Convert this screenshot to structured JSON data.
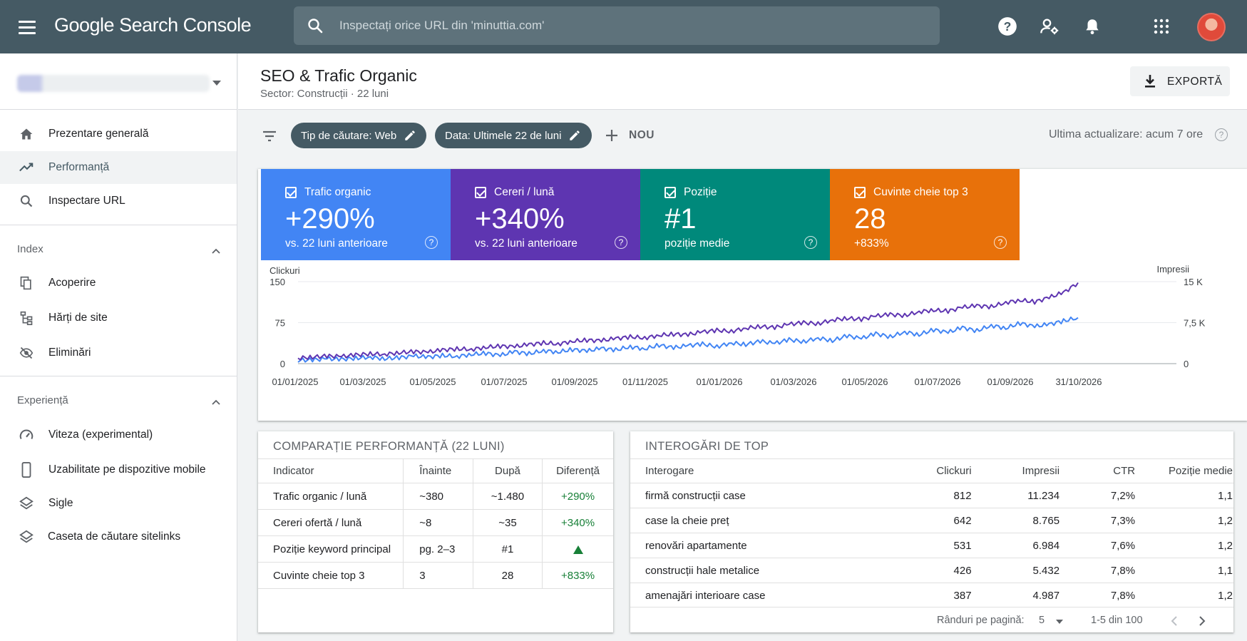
{
  "app": {
    "logo": "Google Search Console",
    "search_placeholder": "Inspectați orice URL din 'minuttia.com'"
  },
  "topbar_icons": [
    "help-icon",
    "manage-users-icon",
    "notifications-icon",
    "apps-icon"
  ],
  "sidebar": {
    "items_top": [
      {
        "label": "Prezentare generală",
        "icon": "home-icon"
      },
      {
        "label": "Performanță",
        "icon": "trending-up-icon",
        "active": true
      },
      {
        "label": "Inspectare URL",
        "icon": "search-icon"
      }
    ],
    "index_title": "Index",
    "items_index": [
      {
        "label": "Acoperire",
        "icon": "coverage-icon"
      },
      {
        "label": "Hărți de site",
        "icon": "sitemap-icon"
      },
      {
        "label": "Eliminări",
        "icon": "removals-icon"
      }
    ],
    "experience_title": "Experiență",
    "items_experience": [
      {
        "label": "Viteza (experimental)",
        "icon": "speed-icon"
      },
      {
        "label": "Uzabilitate pe dispozitive mobile",
        "icon": "phone-icon"
      },
      {
        "label": "Sigle",
        "icon": "layers-icon"
      },
      {
        "label": "Caseta de căutare sitelinks",
        "icon": "layers-icon"
      }
    ]
  },
  "header": {
    "title": "SEO & Trafic Organic",
    "subtitle": "Sector: Construcții · 22 luni",
    "export_label": "EXPORTĂ"
  },
  "filters": {
    "chip_type": "Tip de căutare: Web",
    "chip_date": "Data: Ultimele 22 de luni",
    "new_label": "NOU",
    "last_update": "Ultima actualizare: acum 7 ore"
  },
  "metrics": [
    {
      "label": "Trafic organic",
      "value": "+290%",
      "sub": "vs. 22 luni anterioare",
      "color": "#4285f4"
    },
    {
      "label": "Cereri / lună",
      "value": "+340%",
      "sub": "vs. 22 luni anterioare",
      "color": "#5e35b1"
    },
    {
      "label": "Poziție",
      "value": "#1",
      "sub": "poziție medie",
      "color": "#00897b"
    },
    {
      "label": "Cuvinte cheie top 3",
      "value": "28",
      "sub": "+833%",
      "color": "#e8710a"
    }
  ],
  "chart_data": {
    "type": "line",
    "ylabel_left": "Clickuri",
    "ylabel_right": "Impresii",
    "yticks_left": [
      "150",
      "75",
      "0"
    ],
    "yticks_right": [
      "15 K",
      "7,5 K",
      "0"
    ],
    "ylim_left": [
      0,
      150
    ],
    "ylim_right": [
      0,
      15000
    ],
    "x_ticks": [
      "01/01/2025",
      "01/03/2025",
      "01/05/2025",
      "01/07/2025",
      "01/09/2025",
      "01/11/2025",
      "01/01/2026",
      "01/03/2026",
      "01/05/2026",
      "01/07/2026",
      "01/09/2026",
      "31/10/2026"
    ],
    "grid": true,
    "series": [
      {
        "name": "Clickuri",
        "axis": "left",
        "color": "#4285f4",
        "values": [
          6,
          7,
          9,
          8,
          10,
          12,
          9,
          11,
          14,
          12,
          15,
          13,
          17,
          19,
          15,
          22,
          18,
          24,
          21,
          26,
          23,
          28,
          25,
          31,
          27,
          34,
          29,
          33,
          36,
          31,
          38,
          35,
          41,
          37,
          44,
          40,
          47,
          42,
          51,
          46,
          55,
          49,
          58,
          53,
          62,
          57,
          66,
          60,
          70,
          65,
          74,
          68,
          72,
          78,
          84
        ]
      },
      {
        "name": "Impresii",
        "axis": "right",
        "color": "#5e35b1",
        "values": [
          1000,
          1200,
          1400,
          1300,
          1600,
          1800,
          1700,
          2000,
          2200,
          2100,
          2500,
          2700,
          2600,
          3000,
          3200,
          3100,
          3500,
          3800,
          3600,
          4100,
          4300,
          4200,
          4600,
          4900,
          4700,
          5200,
          5400,
          5300,
          5800,
          6100,
          5900,
          6500,
          6800,
          6600,
          7200,
          7500,
          7300,
          8000,
          8300,
          8100,
          8700,
          9000,
          8800,
          9500,
          9800,
          9600,
          10300,
          10600,
          10400,
          11200,
          11600,
          11300,
          12100,
          13000,
          14800
        ]
      }
    ]
  },
  "comparison": {
    "title": "COMPARAȚIE PERFORMANȚĂ (22 LUNI)",
    "headers": [
      "Indicator",
      "Înainte",
      "După",
      "Diferență"
    ],
    "rows": [
      [
        "Trafic organic / lună",
        "~380",
        "~1.480",
        "+290%"
      ],
      [
        "Cereri ofertă / lună",
        "~8",
        "~35",
        "+340%"
      ],
      [
        "Poziție keyword principal",
        "pg. 2–3",
        "#1",
        ""
      ],
      [
        "Cuvinte cheie top 3",
        "3",
        "28",
        "+833%"
      ]
    ]
  },
  "queries": {
    "title": "INTEROGĂRI DE TOP",
    "headers": [
      "Interogare",
      "Clickuri",
      "Impresii",
      "CTR",
      "Poziție medie"
    ],
    "rows": [
      [
        "firmă construcții case",
        "812",
        "11.234",
        "7,2%",
        "1,1"
      ],
      [
        "case la cheie preț",
        "642",
        "8.765",
        "7,3%",
        "1,2"
      ],
      [
        "renovări apartamente",
        "531",
        "6.984",
        "7,6%",
        "1,2"
      ],
      [
        "construcții hale metalice",
        "426",
        "5.432",
        "7,8%",
        "1,1"
      ],
      [
        "amenajări interioare case",
        "387",
        "4.987",
        "7,8%",
        "1,2"
      ]
    ],
    "rows_per_page_label": "Rânduri pe pagină:",
    "rows_per_page": "5",
    "range": "1-5 din 100"
  }
}
